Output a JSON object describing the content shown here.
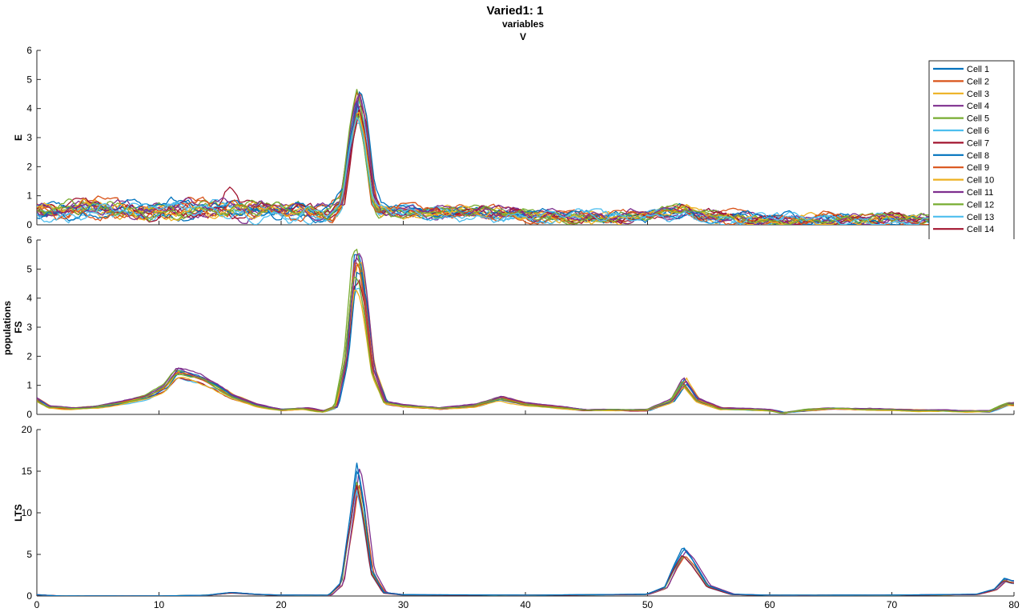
{
  "figure": {
    "title": "Varied1: 1",
    "subtitle_line1": "variables",
    "subtitle_line2": "V",
    "shared_ylabel": "populations",
    "colors": [
      "#0072BD",
      "#D95319",
      "#EDB120",
      "#7E2F8E",
      "#77AC30",
      "#4DBEEE",
      "#A2142F"
    ]
  },
  "chart_data": [
    {
      "type": "line",
      "ylabel": "E",
      "xlim": [
        0,
        80
      ],
      "ylim": [
        0,
        6
      ],
      "yticks": [
        0,
        1,
        2,
        3,
        4,
        5,
        6
      ],
      "x_tick_labels_shown": false,
      "legend": {
        "placement": "top-right",
        "entries": [
          "Cell 1",
          "Cell 2",
          "Cell 3",
          "Cell 4",
          "Cell 5",
          "Cell 6",
          "Cell 7",
          "Cell 8",
          "Cell 9",
          "Cell 10",
          "Cell 11",
          "Cell 12",
          "Cell 13",
          "Cell 14"
        ]
      },
      "n_series": 20,
      "x": [
        0,
        2,
        4,
        6,
        8,
        10,
        12,
        14,
        15.5,
        17,
        20,
        22,
        24,
        25,
        25.8,
        26.3,
        26.8,
        27.5,
        28,
        30,
        35,
        40,
        45,
        50,
        52,
        53,
        54,
        56,
        60,
        65,
        70,
        75,
        78,
        80
      ],
      "baseline": [
        0.45,
        0.4,
        0.5,
        0.55,
        0.5,
        0.55,
        0.6,
        0.55,
        0.5,
        0.45,
        0.45,
        0.4,
        0.45,
        0.8,
        3.2,
        4.3,
        3.4,
        1.0,
        0.55,
        0.45,
        0.38,
        0.33,
        0.3,
        0.3,
        0.38,
        0.55,
        0.3,
        0.23,
        0.2,
        0.17,
        0.15,
        0.15,
        0.15,
        0.15
      ]
    },
    {
      "type": "line",
      "ylabel": "FS",
      "xlim": [
        0,
        80
      ],
      "ylim": [
        0,
        6
      ],
      "yticks": [
        0,
        1,
        2,
        3,
        4,
        5,
        6
      ],
      "x_tick_labels_shown": false,
      "n_series": 12,
      "x": [
        0,
        1,
        3,
        5,
        7,
        9,
        10.5,
        11.5,
        12.5,
        13.5,
        14.5,
        16,
        18,
        20,
        22,
        23.5,
        24.5,
        25.3,
        26,
        26.4,
        26.8,
        27.5,
        28.5,
        30,
        33,
        36,
        38,
        40,
        45,
        50,
        52,
        53,
        54,
        56,
        60,
        61,
        63,
        65,
        70,
        75,
        78,
        79.5,
        80
      ],
      "baseline": [
        0.5,
        0.25,
        0.2,
        0.25,
        0.4,
        0.6,
        0.9,
        1.4,
        1.3,
        1.2,
        1.0,
        0.6,
        0.3,
        0.15,
        0.2,
        0.1,
        0.25,
        1.8,
        4.9,
        5.0,
        4.0,
        1.5,
        0.4,
        0.3,
        0.2,
        0.3,
        0.55,
        0.35,
        0.15,
        0.15,
        0.45,
        1.1,
        0.5,
        0.2,
        0.15,
        0.05,
        0.15,
        0.2,
        0.15,
        0.12,
        0.1,
        0.35,
        0.35
      ]
    },
    {
      "type": "line",
      "ylabel": "LTS",
      "xlim": [
        0,
        80
      ],
      "ylim": [
        0,
        20
      ],
      "yticks": [
        0,
        5,
        10,
        15,
        20
      ],
      "xticks": [
        0,
        10,
        20,
        30,
        40,
        50,
        60,
        70,
        80
      ],
      "x_tick_labels_shown": true,
      "n_series": 8,
      "x": [
        0,
        2,
        10,
        14,
        16,
        18,
        20,
        24,
        25,
        25.8,
        26.3,
        26.8,
        27.5,
        28.5,
        30,
        40,
        50,
        51.5,
        52.3,
        53,
        53.7,
        55,
        57,
        60,
        70,
        77,
        78.5,
        79.3,
        80
      ],
      "baseline": [
        0.15,
        0.0,
        0.0,
        0.1,
        0.4,
        0.2,
        0.1,
        0.1,
        1.5,
        9.5,
        15.2,
        11.0,
        3.0,
        0.4,
        0.15,
        0.1,
        0.2,
        1.0,
        3.5,
        5.4,
        4.2,
        1.2,
        0.2,
        0.1,
        0.1,
        0.2,
        0.8,
        2.0,
        1.7
      ]
    }
  ]
}
